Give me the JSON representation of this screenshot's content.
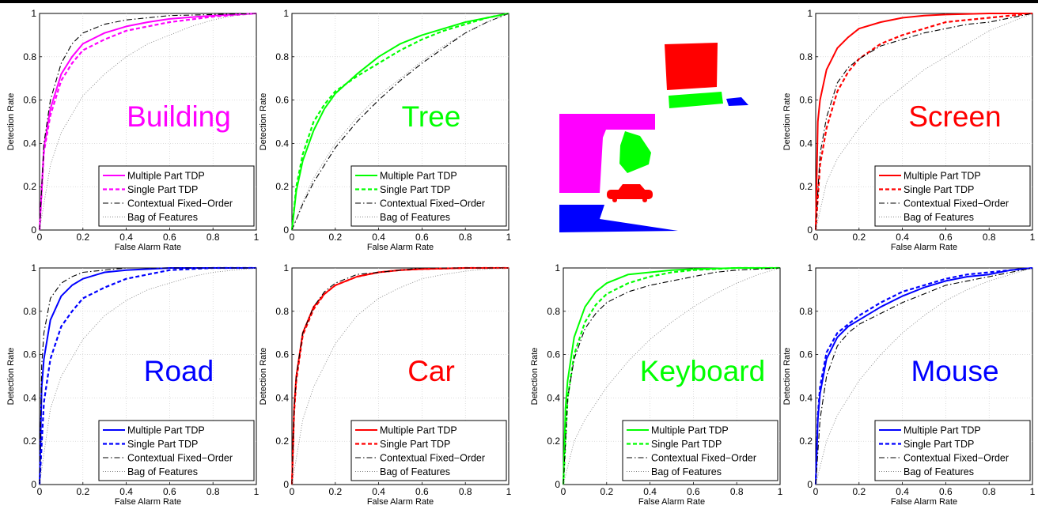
{
  "legend_labels": [
    "Multiple Part TDP",
    "Single Part TDP",
    "Contextual Fixed−Order",
    "Bag of Features"
  ],
  "xlabel": "False Alarm Rate",
  "ylabel": "Detection Rate",
  "tick_labels": [
    "0",
    "0.2",
    "0.4",
    "0.6",
    "0.8",
    "1"
  ],
  "segmentation_colors": {
    "building": "#ff00ff",
    "screen": "#ff0000",
    "keyboard": "#00ff00",
    "mouse": "#0000ff",
    "tree": "#00ff00",
    "car": "#ff0000",
    "road": "#0000ff"
  },
  "chart_data": [
    {
      "type": "line",
      "title": "Building",
      "color": "#ff00ff",
      "xlabel": "False Alarm Rate",
      "ylabel": "Detection Rate",
      "xlim": [
        0,
        1
      ],
      "ylim": [
        0,
        1
      ],
      "grid": true,
      "legend_position": "bottom-right",
      "series": [
        {
          "name": "Multiple Part TDP",
          "x": [
            0,
            0.02,
            0.05,
            0.1,
            0.15,
            0.2,
            0.3,
            0.4,
            0.5,
            0.6,
            0.8,
            1
          ],
          "y": [
            0,
            0.38,
            0.56,
            0.72,
            0.8,
            0.86,
            0.91,
            0.94,
            0.96,
            0.975,
            0.99,
            1
          ]
        },
        {
          "name": "Single Part TDP",
          "x": [
            0,
            0.02,
            0.05,
            0.1,
            0.15,
            0.2,
            0.3,
            0.4,
            0.5,
            0.6,
            0.8,
            1
          ],
          "y": [
            0,
            0.36,
            0.53,
            0.69,
            0.77,
            0.83,
            0.88,
            0.92,
            0.94,
            0.96,
            0.985,
            1
          ]
        },
        {
          "name": "Contextual Fixed−Order",
          "x": [
            0,
            0.02,
            0.05,
            0.1,
            0.15,
            0.2,
            0.3,
            0.4,
            0.5,
            0.6,
            0.8,
            1
          ],
          "y": [
            0,
            0.4,
            0.6,
            0.77,
            0.86,
            0.91,
            0.95,
            0.97,
            0.98,
            0.99,
            0.995,
            1
          ]
        },
        {
          "name": "Bag of Features",
          "x": [
            0,
            0.05,
            0.1,
            0.2,
            0.3,
            0.4,
            0.5,
            0.6,
            0.7,
            0.8,
            0.9,
            1
          ],
          "y": [
            0,
            0.3,
            0.45,
            0.62,
            0.72,
            0.8,
            0.86,
            0.9,
            0.94,
            0.97,
            0.99,
            1
          ]
        }
      ]
    },
    {
      "type": "line",
      "title": "Tree",
      "color": "#00ff00",
      "xlabel": "False Alarm Rate",
      "ylabel": "Detection Rate",
      "xlim": [
        0,
        1
      ],
      "ylim": [
        0,
        1
      ],
      "grid": true,
      "legend_position": "bottom-right",
      "series": [
        {
          "name": "Multiple Part TDP",
          "x": [
            0,
            0.02,
            0.05,
            0.1,
            0.15,
            0.2,
            0.3,
            0.4,
            0.5,
            0.6,
            0.7,
            0.8,
            0.9,
            1
          ],
          "y": [
            0,
            0.18,
            0.32,
            0.46,
            0.56,
            0.63,
            0.72,
            0.8,
            0.86,
            0.9,
            0.93,
            0.96,
            0.98,
            1
          ]
        },
        {
          "name": "Single Part TDP",
          "x": [
            0,
            0.02,
            0.05,
            0.1,
            0.15,
            0.2,
            0.3,
            0.4,
            0.5,
            0.6,
            0.7,
            0.8,
            0.9,
            1
          ],
          "y": [
            0,
            0.2,
            0.35,
            0.5,
            0.58,
            0.64,
            0.71,
            0.77,
            0.83,
            0.88,
            0.92,
            0.95,
            0.98,
            1
          ]
        },
        {
          "name": "Contextual Fixed−Order",
          "x": [
            0,
            0.05,
            0.1,
            0.2,
            0.3,
            0.4,
            0.5,
            0.6,
            0.7,
            0.8,
            0.9,
            1
          ],
          "y": [
            0,
            0.12,
            0.22,
            0.38,
            0.5,
            0.6,
            0.69,
            0.77,
            0.84,
            0.91,
            0.96,
            1
          ]
        },
        {
          "name": "Bag of Features",
          "x": [
            0,
            0.05,
            0.1,
            0.2,
            0.3,
            0.4,
            0.5,
            0.6,
            0.7,
            0.8,
            0.9,
            1
          ],
          "y": [
            0,
            0.13,
            0.24,
            0.4,
            0.52,
            0.62,
            0.7,
            0.78,
            0.85,
            0.91,
            0.96,
            1
          ]
        }
      ]
    },
    {
      "type": "line",
      "title": "Screen",
      "color": "#ff0000",
      "xlabel": "False Alarm Rate",
      "ylabel": "Detection Rate",
      "xlim": [
        0,
        1
      ],
      "ylim": [
        0,
        1
      ],
      "grid": true,
      "legend_position": "bottom-right",
      "series": [
        {
          "name": "Multiple Part TDP",
          "x": [
            0,
            0.01,
            0.02,
            0.05,
            0.1,
            0.15,
            0.2,
            0.3,
            0.4,
            0.5,
            0.6,
            0.8,
            1
          ],
          "y": [
            0,
            0.5,
            0.6,
            0.74,
            0.84,
            0.89,
            0.93,
            0.96,
            0.98,
            0.99,
            0.995,
            1,
            1
          ]
        },
        {
          "name": "Single Part TDP",
          "x": [
            0,
            0.02,
            0.05,
            0.1,
            0.15,
            0.2,
            0.3,
            0.4,
            0.5,
            0.6,
            0.7,
            0.8,
            0.9,
            1
          ],
          "y": [
            0,
            0.3,
            0.47,
            0.64,
            0.73,
            0.79,
            0.86,
            0.9,
            0.93,
            0.96,
            0.97,
            0.98,
            0.99,
            1
          ]
        },
        {
          "name": "Contextual Fixed−Order",
          "x": [
            0,
            0.02,
            0.05,
            0.1,
            0.15,
            0.2,
            0.3,
            0.4,
            0.5,
            0.6,
            0.7,
            0.8,
            0.9,
            1
          ],
          "y": [
            0,
            0.35,
            0.52,
            0.68,
            0.75,
            0.79,
            0.85,
            0.88,
            0.91,
            0.93,
            0.95,
            0.96,
            0.98,
            1
          ]
        },
        {
          "name": "Bag of Features",
          "x": [
            0,
            0.05,
            0.1,
            0.2,
            0.3,
            0.4,
            0.5,
            0.6,
            0.7,
            0.8,
            0.9,
            1
          ],
          "y": [
            0,
            0.22,
            0.33,
            0.47,
            0.58,
            0.66,
            0.74,
            0.8,
            0.86,
            0.92,
            0.96,
            1
          ]
        }
      ]
    },
    {
      "type": "line",
      "title": "Road",
      "color": "#0000ff",
      "xlabel": "False Alarm Rate",
      "ylabel": "Detection Rate",
      "xlim": [
        0,
        1
      ],
      "ylim": [
        0,
        1
      ],
      "grid": true,
      "legend_position": "bottom-right",
      "series": [
        {
          "name": "Multiple Part TDP",
          "x": [
            0,
            0.01,
            0.02,
            0.05,
            0.1,
            0.15,
            0.2,
            0.3,
            0.4,
            0.5,
            0.6,
            0.8,
            1
          ],
          "y": [
            0,
            0.45,
            0.58,
            0.76,
            0.87,
            0.92,
            0.95,
            0.98,
            0.99,
            0.995,
            1,
            1,
            1
          ]
        },
        {
          "name": "Single Part TDP",
          "x": [
            0,
            0.02,
            0.05,
            0.1,
            0.15,
            0.2,
            0.3,
            0.4,
            0.5,
            0.6,
            0.8,
            1
          ],
          "y": [
            0,
            0.38,
            0.58,
            0.73,
            0.8,
            0.86,
            0.91,
            0.95,
            0.97,
            0.99,
            1,
            1
          ]
        },
        {
          "name": "Contextual Fixed−Order",
          "x": [
            0,
            0.01,
            0.02,
            0.05,
            0.1,
            0.15,
            0.2,
            0.3,
            0.4,
            0.6,
            1
          ],
          "y": [
            0,
            0.55,
            0.7,
            0.86,
            0.93,
            0.96,
            0.98,
            0.99,
            1,
            1,
            1
          ]
        },
        {
          "name": "Bag of Features",
          "x": [
            0,
            0.05,
            0.1,
            0.2,
            0.3,
            0.4,
            0.5,
            0.6,
            0.7,
            0.8,
            0.9,
            1
          ],
          "y": [
            0,
            0.35,
            0.5,
            0.67,
            0.78,
            0.85,
            0.9,
            0.93,
            0.96,
            0.98,
            0.99,
            1
          ]
        }
      ]
    },
    {
      "type": "line",
      "title": "Car",
      "color": "#ff0000",
      "xlabel": "False Alarm Rate",
      "ylabel": "Detection Rate",
      "xlim": [
        0,
        1
      ],
      "ylim": [
        0,
        1
      ],
      "grid": true,
      "legend_position": "bottom-right",
      "series": [
        {
          "name": "Multiple Part TDP",
          "x": [
            0,
            0.01,
            0.02,
            0.05,
            0.1,
            0.15,
            0.2,
            0.3,
            0.4,
            0.5,
            0.6,
            0.8,
            1
          ],
          "y": [
            0,
            0.35,
            0.5,
            0.7,
            0.82,
            0.88,
            0.92,
            0.96,
            0.98,
            0.99,
            0.995,
            1,
            1
          ]
        },
        {
          "name": "Single Part TDP",
          "x": [
            0,
            0.01,
            0.02,
            0.05,
            0.1,
            0.15,
            0.2,
            0.3,
            0.4,
            0.5,
            0.6,
            0.8,
            1
          ],
          "y": [
            0,
            0.33,
            0.48,
            0.69,
            0.81,
            0.88,
            0.92,
            0.96,
            0.98,
            0.99,
            0.995,
            1,
            1
          ]
        },
        {
          "name": "Contextual Fixed−Order",
          "x": [
            0,
            0.01,
            0.02,
            0.05,
            0.1,
            0.15,
            0.2,
            0.3,
            0.4,
            0.5,
            0.6,
            0.8,
            1
          ],
          "y": [
            0,
            0.35,
            0.5,
            0.7,
            0.82,
            0.89,
            0.93,
            0.97,
            0.98,
            0.99,
            1,
            1,
            1
          ]
        },
        {
          "name": "Bag of Features",
          "x": [
            0,
            0.05,
            0.1,
            0.2,
            0.3,
            0.4,
            0.5,
            0.6,
            0.7,
            0.8,
            0.9,
            1
          ],
          "y": [
            0,
            0.3,
            0.45,
            0.65,
            0.78,
            0.86,
            0.91,
            0.95,
            0.97,
            0.985,
            0.995,
            1
          ]
        }
      ]
    },
    {
      "type": "line",
      "title": "Keyboard",
      "color": "#00ff00",
      "xlabel": "False Alarm Rate",
      "ylabel": "Detection Rate",
      "xlim": [
        0,
        1
      ],
      "ylim": [
        0,
        1
      ],
      "grid": true,
      "legend_position": "bottom-right",
      "series": [
        {
          "name": "Multiple Part TDP",
          "x": [
            0,
            0.01,
            0.02,
            0.05,
            0.1,
            0.15,
            0.2,
            0.3,
            0.4,
            0.5,
            0.6,
            0.8,
            1
          ],
          "y": [
            0,
            0.35,
            0.48,
            0.68,
            0.82,
            0.89,
            0.93,
            0.97,
            0.98,
            0.99,
            0.995,
            1,
            1
          ]
        },
        {
          "name": "Single Part TDP",
          "x": [
            0,
            0.02,
            0.05,
            0.1,
            0.15,
            0.2,
            0.3,
            0.4,
            0.5,
            0.6,
            0.8,
            1
          ],
          "y": [
            0,
            0.4,
            0.6,
            0.75,
            0.83,
            0.88,
            0.93,
            0.96,
            0.98,
            0.99,
            1,
            1
          ]
        },
        {
          "name": "Contextual Fixed−Order",
          "x": [
            0,
            0.02,
            0.05,
            0.1,
            0.15,
            0.2,
            0.3,
            0.4,
            0.5,
            0.6,
            0.7,
            0.8,
            1
          ],
          "y": [
            0,
            0.4,
            0.58,
            0.72,
            0.79,
            0.84,
            0.89,
            0.92,
            0.94,
            0.96,
            0.98,
            0.99,
            1
          ]
        },
        {
          "name": "Bag of Features",
          "x": [
            0,
            0.05,
            0.1,
            0.2,
            0.3,
            0.4,
            0.5,
            0.6,
            0.7,
            0.8,
            0.9,
            1
          ],
          "y": [
            0,
            0.2,
            0.3,
            0.45,
            0.57,
            0.67,
            0.75,
            0.82,
            0.88,
            0.93,
            0.97,
            1
          ]
        }
      ]
    },
    {
      "type": "line",
      "title": "Mouse",
      "color": "#0000ff",
      "xlabel": "False Alarm Rate",
      "ylabel": "Detection Rate",
      "xlim": [
        0,
        1
      ],
      "ylim": [
        0,
        1
      ],
      "grid": true,
      "legend_position": "bottom-right",
      "series": [
        {
          "name": "Multiple Part TDP",
          "x": [
            0,
            0.01,
            0.02,
            0.05,
            0.1,
            0.15,
            0.2,
            0.3,
            0.4,
            0.5,
            0.6,
            0.7,
            0.8,
            0.9,
            1
          ],
          "y": [
            0,
            0.3,
            0.42,
            0.58,
            0.68,
            0.73,
            0.76,
            0.82,
            0.87,
            0.91,
            0.94,
            0.96,
            0.97,
            0.99,
            1
          ]
        },
        {
          "name": "Single Part TDP",
          "x": [
            0,
            0.01,
            0.02,
            0.05,
            0.1,
            0.15,
            0.2,
            0.3,
            0.4,
            0.5,
            0.6,
            0.7,
            0.8,
            0.9,
            1
          ],
          "y": [
            0,
            0.32,
            0.45,
            0.61,
            0.7,
            0.74,
            0.78,
            0.84,
            0.89,
            0.92,
            0.95,
            0.97,
            0.98,
            0.99,
            1
          ]
        },
        {
          "name": "Contextual Fixed−Order",
          "x": [
            0,
            0.02,
            0.05,
            0.1,
            0.15,
            0.2,
            0.3,
            0.4,
            0.5,
            0.6,
            0.7,
            0.8,
            0.9,
            1
          ],
          "y": [
            0,
            0.3,
            0.5,
            0.64,
            0.7,
            0.74,
            0.79,
            0.84,
            0.88,
            0.92,
            0.94,
            0.96,
            0.98,
            1
          ]
        },
        {
          "name": "Bag of Features",
          "x": [
            0,
            0.05,
            0.1,
            0.2,
            0.3,
            0.4,
            0.5,
            0.6,
            0.7,
            0.8,
            0.9,
            1
          ],
          "y": [
            0,
            0.2,
            0.32,
            0.48,
            0.6,
            0.7,
            0.78,
            0.85,
            0.9,
            0.94,
            0.97,
            1
          ]
        }
      ]
    }
  ]
}
